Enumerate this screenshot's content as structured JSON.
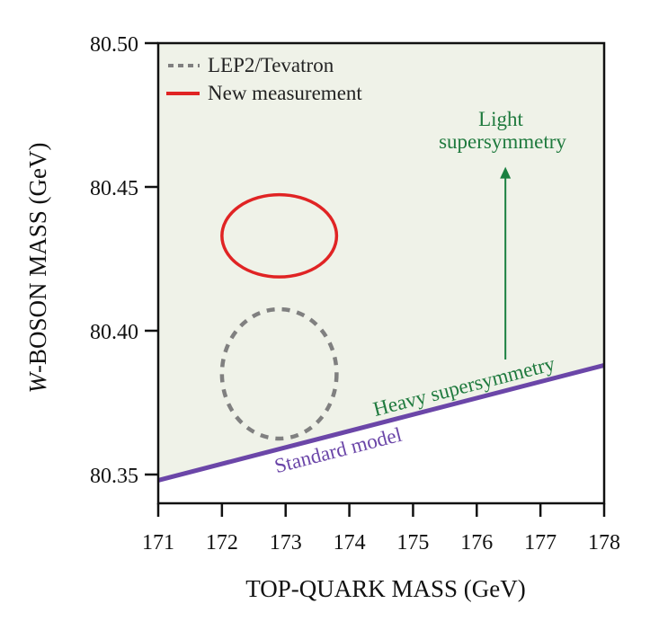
{
  "chart_data": {
    "type": "scatter",
    "title": "",
    "xlabel": "TOP-QUARK MASS (GeV)",
    "ylabel_italic_prefix": "W",
    "ylabel_rest": "-BOSON MASS (GeV)",
    "xlim": [
      171,
      178
    ],
    "ylim": [
      80.34,
      80.5
    ],
    "xticks": [
      171,
      172,
      173,
      174,
      175,
      176,
      177,
      178
    ],
    "xtick_labels": [
      "171",
      "172",
      "173",
      "174",
      "175",
      "176",
      "177",
      "178"
    ],
    "yticks": [
      80.35,
      80.4,
      80.45,
      80.5
    ],
    "ytick_labels": [
      "80.35",
      "80.40",
      "80.45",
      "80.50"
    ],
    "grid": false,
    "legend": {
      "placement": "top-left",
      "entries": [
        {
          "label": "LEP2/Tevatron",
          "style": "dashed",
          "color": "#808080"
        },
        {
          "label": "New measurement",
          "style": "solid",
          "color": "#e02424"
        }
      ]
    },
    "series": [
      {
        "name": "LEP2/Tevatron",
        "kind": "ellipse",
        "center": [
          172.9,
          80.385
        ],
        "half_width_x": 0.9,
        "half_width_y": 0.0225,
        "color": "#808080",
        "style": "dashed"
      },
      {
        "name": "New measurement",
        "kind": "ellipse",
        "center": [
          172.9,
          80.433
        ],
        "half_width_x": 0.9,
        "half_width_y": 0.0143,
        "color": "#e02424",
        "style": "solid"
      },
      {
        "name": "Standard model",
        "kind": "line",
        "x": [
          171,
          178
        ],
        "y": [
          80.348,
          80.388
        ],
        "color": "#6b46a8"
      }
    ],
    "shaded_region": {
      "label": "Supersymmetry region (above Standard model line)",
      "color": "#eff2e8"
    },
    "annotations": {
      "light_susy_line1": "Light",
      "light_susy_line2": "supersymmetry",
      "heavy_susy": "Heavy supersymmetry",
      "standard_model": "Standard model",
      "arrow": {
        "x": 176.45,
        "y_from": 80.39,
        "y_to": 80.457,
        "color": "#1a8040"
      },
      "green_color": "#1f7a3e",
      "purple_color": "#6b46a8"
    }
  }
}
